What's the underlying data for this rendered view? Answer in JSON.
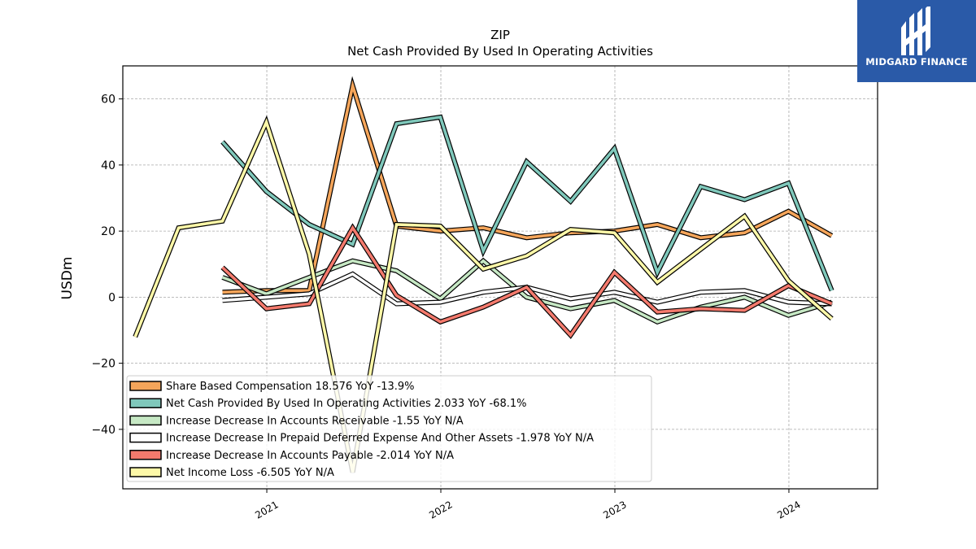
{
  "logo": {
    "text": "MIDGARD FINANCE",
    "bg": "#2a5aa8"
  },
  "chart_data": {
    "type": "line",
    "title": "ZIP",
    "subtitle": "Net Cash Provided By Used In Operating Activities",
    "ylabel": "USDm",
    "xlabel": "",
    "x_range": [
      "2020-03-05",
      "2024-07-05"
    ],
    "ylim": [
      -58,
      70
    ],
    "yticks": [
      -40,
      -20,
      0,
      20,
      40,
      60
    ],
    "ytick_labels": [
      "−40",
      "−20",
      "0",
      "20",
      "40",
      "60"
    ],
    "xticks": [
      "2021-01-01",
      "2022-01-01",
      "2023-01-01",
      "2024-01-01"
    ],
    "xtick_labels": [
      "2021",
      "2022",
      "2023",
      "2024"
    ],
    "grid": true,
    "legend_position": "lower-left",
    "series": [
      {
        "name": "Share Based Compensation",
        "legend": "Share Based Compensation  18.576 YoY -13.9%",
        "color": "#f5a55a",
        "x": [
          "2020-09-30",
          "2020-12-31",
          "2021-03-31",
          "2021-06-30",
          "2021-09-30",
          "2021-12-31",
          "2022-03-31",
          "2022-06-30",
          "2022-09-30",
          "2022-12-31",
          "2023-03-31",
          "2023-06-30",
          "2023-09-30",
          "2023-12-31",
          "2024-03-31"
        ],
        "y": [
          1.5,
          2,
          2,
          64,
          21.5,
          20,
          21,
          18,
          19.5,
          20,
          22,
          18,
          19.5,
          26,
          18.6
        ]
      },
      {
        "name": "Net Cash Provided By Used In Operating Activities",
        "legend": "Net Cash Provided By Used In Operating Activities  2.033 YoY -68.1%",
        "color": "#7fc8bb",
        "x": [
          "2020-09-30",
          "2020-12-31",
          "2021-03-31",
          "2021-06-30",
          "2021-09-30",
          "2021-12-31",
          "2022-03-31",
          "2022-06-30",
          "2022-09-30",
          "2022-12-31",
          "2023-03-31",
          "2023-06-30",
          "2023-09-30",
          "2023-12-31",
          "2024-03-31"
        ],
        "y": [
          47,
          32,
          22,
          16,
          52.5,
          54.5,
          14,
          41,
          29,
          45,
          7.5,
          33.5,
          29.5,
          34.5,
          2
        ]
      },
      {
        "name": "Increase Decrease In Accounts Receivable",
        "legend": "Increase Decrease In Accounts Receivable  -1.55 YoY N/A",
        "color": "#c6e8c4",
        "x": [
          "2020-09-30",
          "2020-12-31",
          "2021-03-31",
          "2021-06-30",
          "2021-09-30",
          "2021-12-31",
          "2022-03-31",
          "2022-06-30",
          "2022-09-30",
          "2022-12-31",
          "2023-03-31",
          "2023-06-30",
          "2023-09-30",
          "2023-12-31",
          "2024-03-31"
        ],
        "y": [
          6,
          1,
          6,
          11,
          8,
          -0.5,
          11,
          0,
          -3.5,
          -1,
          -7.5,
          -3,
          0,
          -5.5,
          -1.5
        ]
      },
      {
        "name": "Increase Decrease In Prepaid Deferred Expense And Other Assets",
        "legend": "Increase Decrease In Prepaid Deferred Expense And Other Assets  -1.978 YoY N/A",
        "color": "#ffffff",
        "x": [
          "2020-09-30",
          "2020-12-31",
          "2021-03-31",
          "2021-06-30",
          "2021-09-30",
          "2021-12-31",
          "2022-03-31",
          "2022-06-30",
          "2022-09-30",
          "2022-12-31",
          "2023-03-31",
          "2023-06-30",
          "2023-09-30",
          "2023-12-31",
          "2024-03-31"
        ],
        "y": [
          -1,
          0,
          1,
          7,
          -2,
          -1.5,
          1.5,
          3,
          -0.5,
          1.5,
          -1.5,
          1.5,
          2,
          -1.5,
          -2
        ]
      },
      {
        "name": "Increase Decrease In Accounts Payable",
        "legend": "Increase Decrease In Accounts Payable  -2.014 YoY N/A",
        "color": "#f47a6d",
        "x": [
          "2020-09-30",
          "2020-12-31",
          "2021-03-31",
          "2021-06-30",
          "2021-09-30",
          "2021-12-31",
          "2022-03-31",
          "2022-06-30",
          "2022-09-30",
          "2022-12-31",
          "2023-03-31",
          "2023-06-30",
          "2023-09-30",
          "2023-12-31",
          "2024-03-31"
        ],
        "y": [
          9,
          -3.5,
          -2,
          21,
          0.5,
          -7.5,
          -3,
          3,
          -11.5,
          7.5,
          -4.5,
          -3.5,
          -4,
          3.5,
          -2
        ]
      },
      {
        "name": "Net Income Loss",
        "legend": "Net Income Loss  -6.505 YoY N/A",
        "color": "#fdf8a8",
        "x": [
          "2020-03-31",
          "2020-06-30",
          "2020-09-30",
          "2020-12-31",
          "2021-03-31",
          "2021-06-30",
          "2021-09-30",
          "2021-12-31",
          "2022-03-31",
          "2022-06-30",
          "2022-09-30",
          "2022-12-31",
          "2023-03-31",
          "2023-06-30",
          "2023-09-30",
          "2023-12-31",
          "2024-03-31"
        ],
        "y": [
          -12,
          21,
          23,
          53,
          13,
          -53,
          22,
          21.5,
          8.5,
          12.5,
          20.5,
          19.5,
          4.5,
          14.5,
          24.5,
          5,
          -6.5
        ]
      }
    ]
  }
}
